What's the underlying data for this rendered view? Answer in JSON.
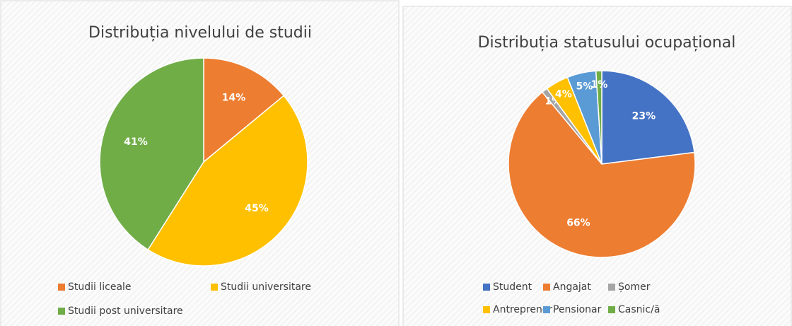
{
  "chart_data": [
    {
      "type": "pie",
      "title": "Distribuția nivelului de studii",
      "categories": [
        "Studii liceale",
        "Studii universitare",
        "Studii post universitare"
      ],
      "values": [
        14,
        45,
        41
      ],
      "value_labels": [
        "14%",
        "45%",
        "41%"
      ],
      "colors": [
        "#ed7d31",
        "#ffc000",
        "#70ad47"
      ],
      "legend": "bottom"
    },
    {
      "type": "pie",
      "title": "Distribuția statusului ocupațional",
      "categories": [
        "Student",
        "Angajat",
        "Șomer",
        "Antreprenor",
        "Pensionar",
        "Casnic/ă"
      ],
      "values": [
        23,
        66,
        1,
        4,
        5,
        1
      ],
      "value_labels": [
        "23%",
        "66%",
        "1%",
        "4%",
        "5%",
        "1%"
      ],
      "colors": [
        "#4472c4",
        "#ed7d31",
        "#a5a5a5",
        "#ffc000",
        "#5b9bd5",
        "#70ad47"
      ],
      "legend": "bottom"
    }
  ]
}
